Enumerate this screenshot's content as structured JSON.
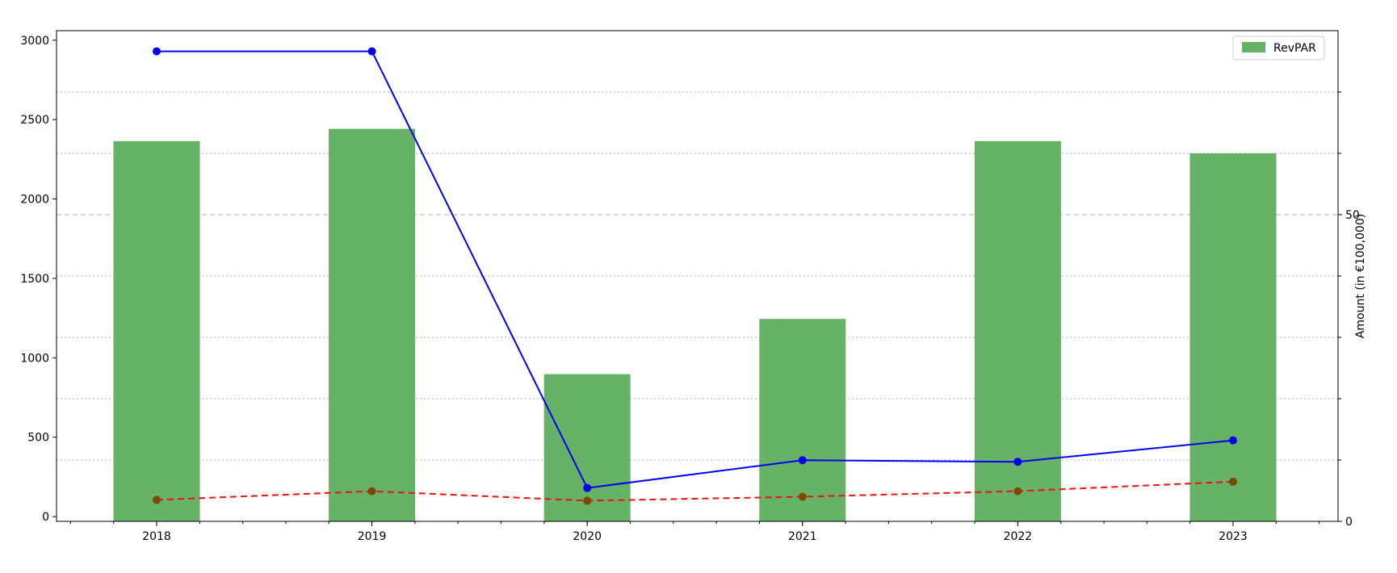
{
  "chart_data": {
    "type": "bar",
    "categories": [
      "2018",
      "2019",
      "2020",
      "2021",
      "2022",
      "2023"
    ],
    "series": [
      {
        "name": "RevPAR",
        "kind": "bar",
        "axis": "right",
        "color": "#66b266",
        "values": [
          62,
          64,
          24,
          33,
          62,
          60
        ]
      },
      {
        "kind": "line",
        "axis": "left",
        "color": "#0000ee",
        "style": "solid",
        "marker": "circle",
        "values": [
          2930,
          2930,
          180,
          355,
          345,
          480
        ]
      },
      {
        "kind": "line",
        "axis": "left",
        "color": "#ee1111",
        "style": "dashed",
        "marker": "circle",
        "marker_color": "#7a4a00",
        "values": [
          105,
          160,
          100,
          125,
          160,
          220
        ]
      }
    ],
    "left_axis": {
      "ylim": [
        -30,
        3060
      ],
      "ticks": [
        0,
        500,
        1000,
        1500,
        2000,
        2500,
        3000
      ],
      "label": ""
    },
    "right_axis": {
      "ylim": [
        0,
        80
      ],
      "ticks": [
        0,
        50
      ],
      "tick_labels": [
        "0",
        "50"
      ],
      "minor_ticks": [
        10,
        20,
        30,
        40,
        60,
        70
      ],
      "label": "Amount (in €100,000)"
    },
    "grid": {
      "dotted_at_right": [
        10,
        20,
        30,
        40,
        60,
        70
      ],
      "dashed_at_right": [
        50
      ]
    },
    "xlabel": "",
    "legend": {
      "position": "top-right",
      "entries": [
        "RevPAR"
      ]
    }
  }
}
